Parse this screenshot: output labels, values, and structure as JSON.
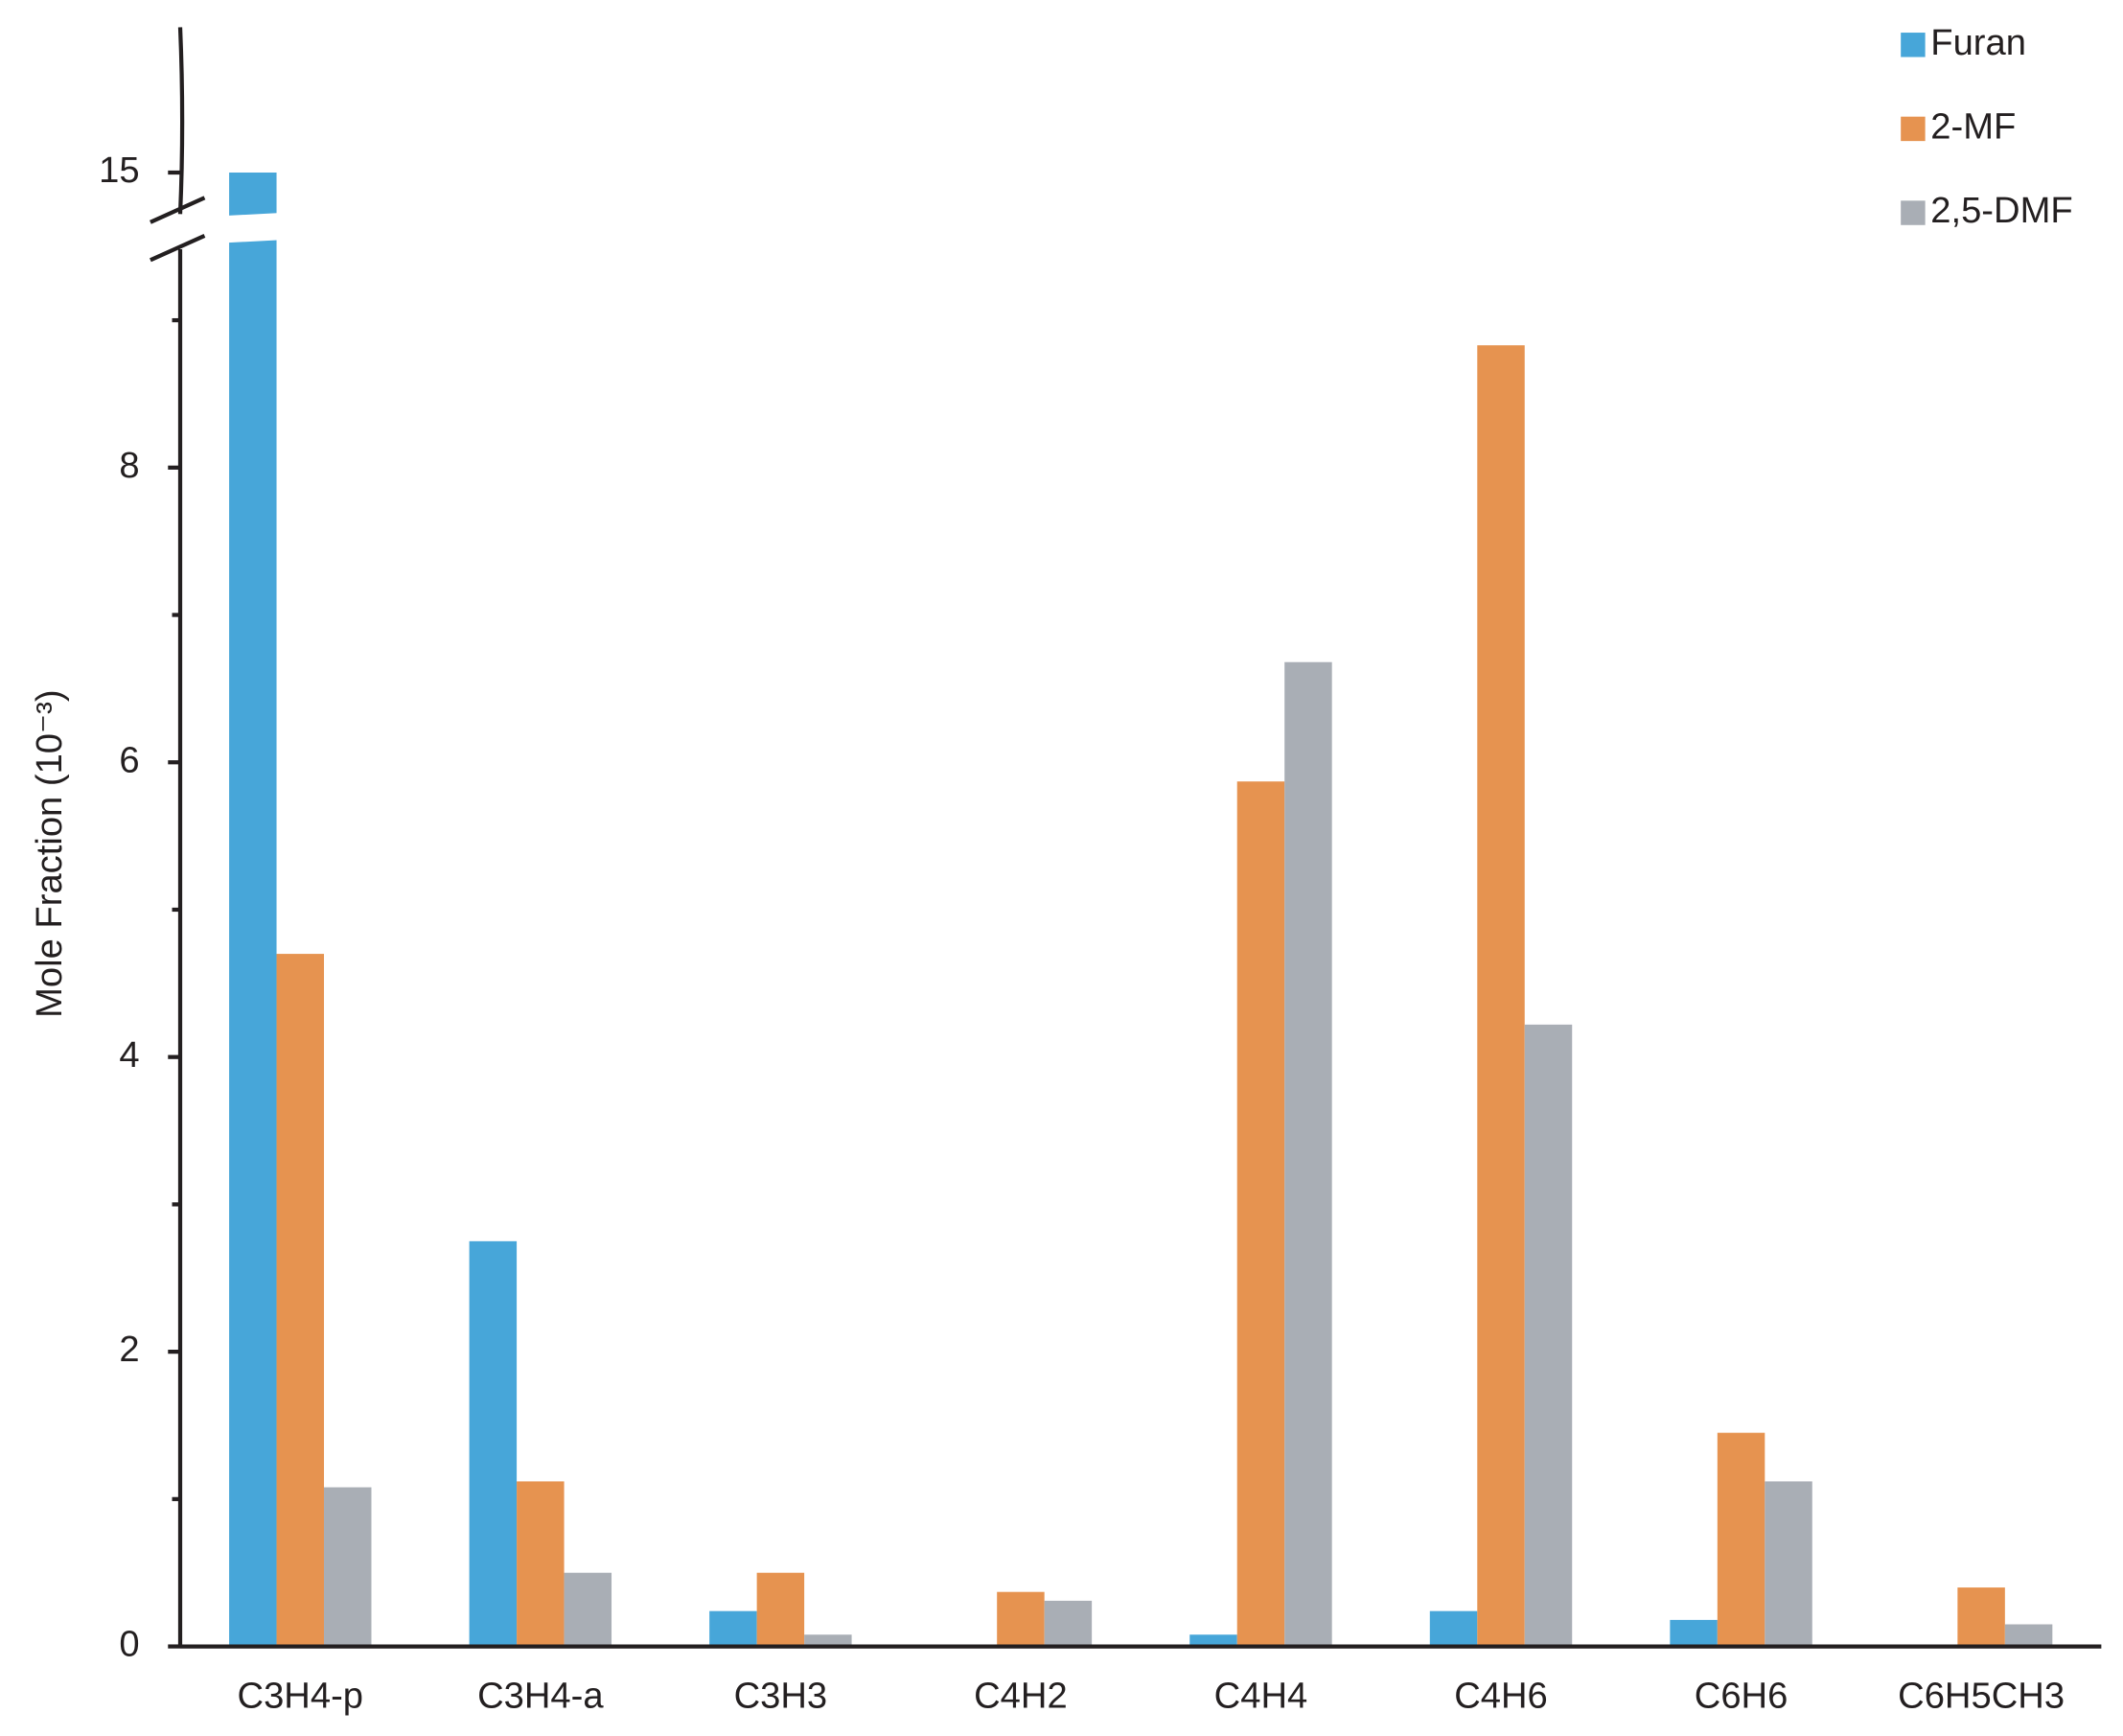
{
  "chart_data": {
    "type": "bar",
    "y_label": "Mole Fraction (10⁻³)",
    "categories": [
      "C3H4-p",
      "C3H4-a",
      "C3H3",
      "C4H2",
      "C4H4",
      "C4H6",
      "C6H6",
      "C6H5CH3"
    ],
    "series": [
      {
        "name": "Furan",
        "color": "#47a6d9",
        "values": [
          15,
          2.75,
          0.24,
          0,
          0.08,
          0.24,
          0.18,
          0
        ]
      },
      {
        "name": "2-MF",
        "color": "#e69350",
        "values": [
          4.7,
          1.12,
          0.5,
          0.37,
          5.87,
          8.83,
          1.45,
          0.4
        ]
      },
      {
        "name": "2,5-DMF",
        "color": "#a9aeb5",
        "values": [
          1.08,
          0.5,
          0.08,
          0.31,
          6.68,
          4.22,
          1.12,
          0.15
        ]
      }
    ],
    "ylim": [
      0,
      15
    ],
    "axis_break": [
      9.5,
      14.7
    ],
    "yticks": [
      0,
      2,
      4,
      6,
      8,
      15
    ],
    "minor_yticks": [
      1,
      3,
      5,
      7,
      9
    ],
    "legend": "top-right"
  }
}
